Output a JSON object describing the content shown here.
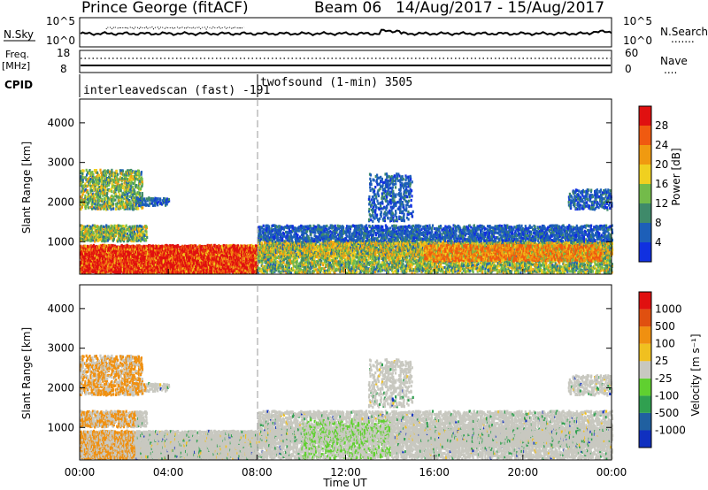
{
  "header": {
    "station": "Prince George (fitACF)",
    "beam": "Beam 06",
    "dates": "14/Aug/2017 - 15/Aug/2017"
  },
  "panels": {
    "nsky": {
      "left_label": "N.Sky",
      "left_ticks": [
        "10^5",
        "10^0"
      ],
      "right_ticks": [
        "10^5",
        "10^0"
      ],
      "right_label": "N.Search",
      "right_key": "......."
    },
    "freq": {
      "left_label_1": "Freq.",
      "left_label_2": "[MHz]",
      "left_ticks": [
        "18",
        "8"
      ],
      "right_ticks": [
        "60",
        "0"
      ],
      "right_label": "Nave",
      "right_key": "...."
    },
    "cpid": {
      "label": "CPID",
      "mode_1": "interleavedscan (fast) -191",
      "mode_2": "twofsound (1-min) 3505"
    }
  },
  "chart_data": [
    {
      "type": "heatmap",
      "title": "Power",
      "ylabel": "Slant Range [km]",
      "xlabel": "",
      "ylim": [
        180,
        4600
      ],
      "yticks": [
        1000,
        2000,
        3000,
        4000
      ],
      "colorbar_label": "Power [dB]",
      "colorbar_ticks": [
        4,
        8,
        12,
        16,
        20,
        24,
        28
      ],
      "colorbar_range": [
        0,
        32
      ],
      "colorbar_colors": [
        "#1030e0",
        "#1d5fb8",
        "#3f8a6a",
        "#73bb4a",
        "#f0d020",
        "#f09a10",
        "#f05a10",
        "#e01010"
      ]
    },
    {
      "type": "heatmap",
      "title": "Velocity",
      "ylabel": "Slant Range [km]",
      "xlabel": "Time UT",
      "ylim": [
        180,
        4600
      ],
      "yticks": [
        1000,
        2000,
        3000,
        4000
      ],
      "xticks": [
        "00:00",
        "04:00",
        "08:00",
        "12:00",
        "16:00",
        "20:00",
        "00:00"
      ],
      "colorbar_label": "Velocity [m s⁻¹]",
      "colorbar_ticks": [
        "1000",
        "500",
        "100",
        "25",
        "-25",
        "-100",
        "-500",
        "-1000"
      ],
      "colorbar_colors": [
        "#1030c0",
        "#2060a0",
        "#30a050",
        "#60d030",
        "#c8c8c0",
        "#f0c020",
        "#f09010",
        "#e05010",
        "#e01010"
      ]
    }
  ]
}
